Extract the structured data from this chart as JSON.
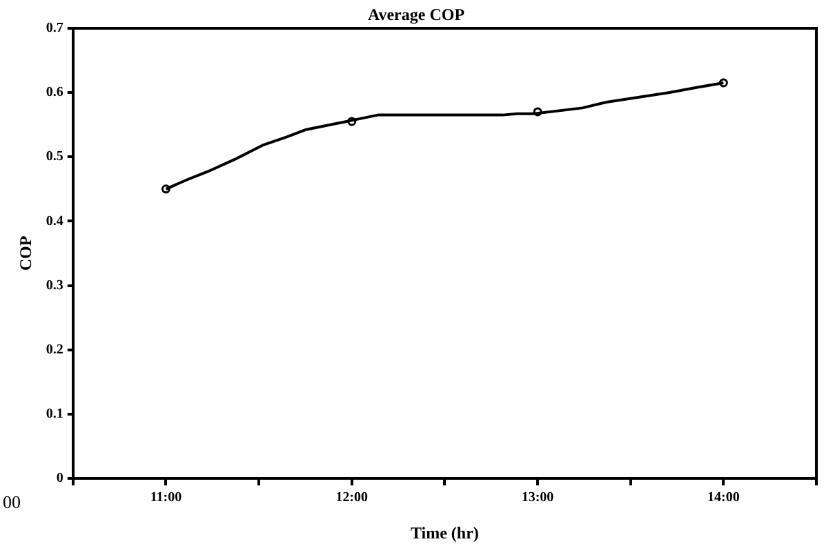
{
  "chart_data": {
    "type": "line",
    "title": "Average COP",
    "xlabel": "Time (hr)",
    "ylabel": "COP",
    "xlim": [
      10.5,
      14.5
    ],
    "xticks": [
      {
        "value": 10.5,
        "label": null
      },
      {
        "value": 11,
        "label": "11:00"
      },
      {
        "value": 11.5,
        "label": null
      },
      {
        "value": 12,
        "label": "12:00"
      },
      {
        "value": 12.5,
        "label": null
      },
      {
        "value": 13,
        "label": "13:00"
      },
      {
        "value": 13.5,
        "label": null
      },
      {
        "value": 14,
        "label": "14:00"
      },
      {
        "value": 14.5,
        "label": null
      }
    ],
    "ylim": [
      0,
      0.7
    ],
    "yticks": [
      0,
      0.1,
      0.2,
      0.3,
      0.4,
      0.5,
      0.6,
      0.7
    ],
    "grid": false,
    "legend": false,
    "annotations": [
      "00"
    ],
    "series": [
      {
        "color": "#000000",
        "marker": "none",
        "x": [
          11.0,
          11.11,
          11.24,
          11.37,
          11.52,
          11.65,
          11.75,
          11.99,
          12.14,
          12.29,
          12.81,
          12.89,
          12.98,
          13.24,
          13.37,
          13.71,
          13.86,
          14.0
        ],
        "values": [
          0.45,
          0.464,
          0.479,
          0.496,
          0.518,
          0.531,
          0.542,
          0.556,
          0.565,
          0.565,
          0.565,
          0.567,
          0.567,
          0.576,
          0.585,
          0.6,
          0.608,
          0.615
        ]
      },
      {
        "type": "scatter",
        "color": "#000000",
        "marker": "circle",
        "x": [
          11,
          12,
          13,
          14
        ],
        "values": [
          0.45,
          0.555,
          0.57,
          0.615
        ]
      }
    ]
  }
}
